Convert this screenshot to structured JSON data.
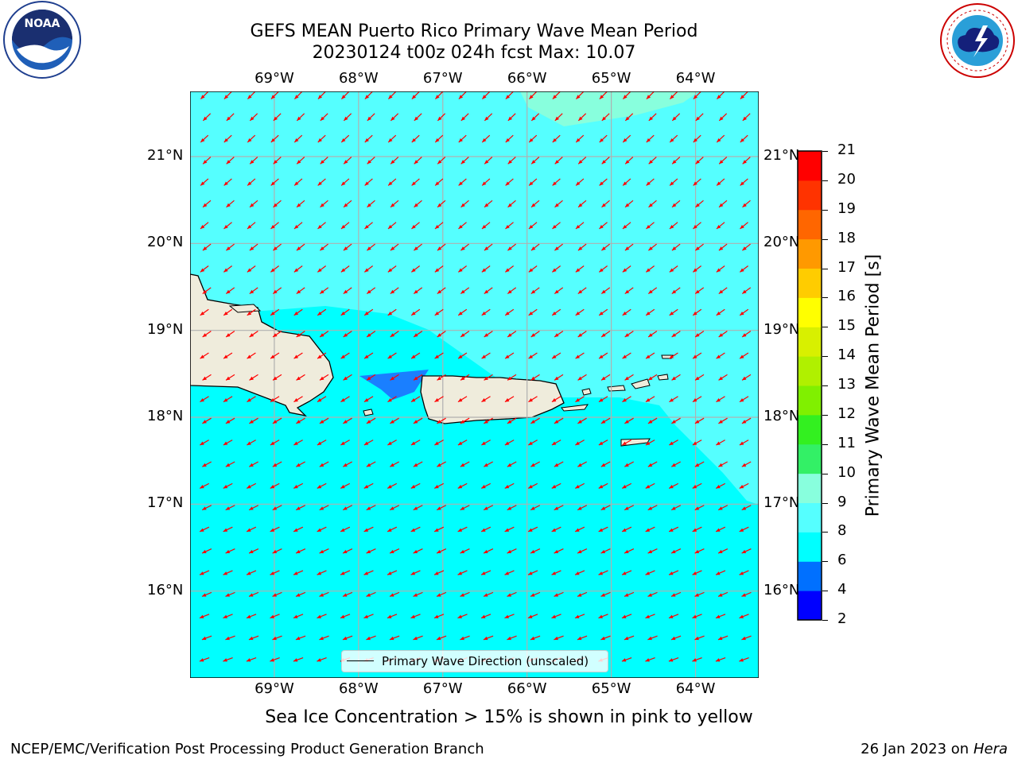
{
  "title_line1": "GEFS MEAN Puerto Rico Primary Wave Mean Period",
  "title_line2": "20230124 t00z 024h fcst   Max: 10.07",
  "logos": {
    "left": "noaa-logo",
    "right": "nws-logo"
  },
  "map": {
    "lon_labels": [
      "69°W",
      "68°W",
      "67°W",
      "66°W",
      "65°W",
      "64°W"
    ],
    "lat_labels": [
      "21°N",
      "20°N",
      "19°N",
      "18°N",
      "17°N",
      "16°N"
    ],
    "lon_range": [
      -70,
      -63.25
    ],
    "lat_range": [
      15,
      21.75
    ],
    "grid": true,
    "ocean_color": "#00ffff",
    "land_color": "#efecdc",
    "arrow_color": "#ff0000",
    "legend_label": "Primary Wave Direction (unscaled)",
    "legend_placement": "bottom-center"
  },
  "colorbar": {
    "label": "Primary Wave Mean Period [s]",
    "ticks": [
      "21",
      "20",
      "19",
      "18",
      "17",
      "16",
      "15",
      "14",
      "13",
      "12",
      "11",
      "10",
      "9",
      "8",
      "6",
      "4",
      "2"
    ],
    "colors_bottom_to_top": [
      "#0000ff",
      "#0070ff",
      "#00ffff",
      "#55ffff",
      "#88ffdd",
      "#33f066",
      "#33f020",
      "#80f000",
      "#b0f000",
      "#d8f000",
      "#ffff00",
      "#ffcc00",
      "#ff9900",
      "#ff6600",
      "#ff3300",
      "#ff0000"
    ]
  },
  "subnote": "Sea Ice Concentration > 15% is shown in pink to yellow",
  "footer_left": "NCEP/EMC/Verification Post Processing Product Generation Branch",
  "footer_right_prefix": "26 Jan 2023 on ",
  "footer_right_host": "Hera"
}
